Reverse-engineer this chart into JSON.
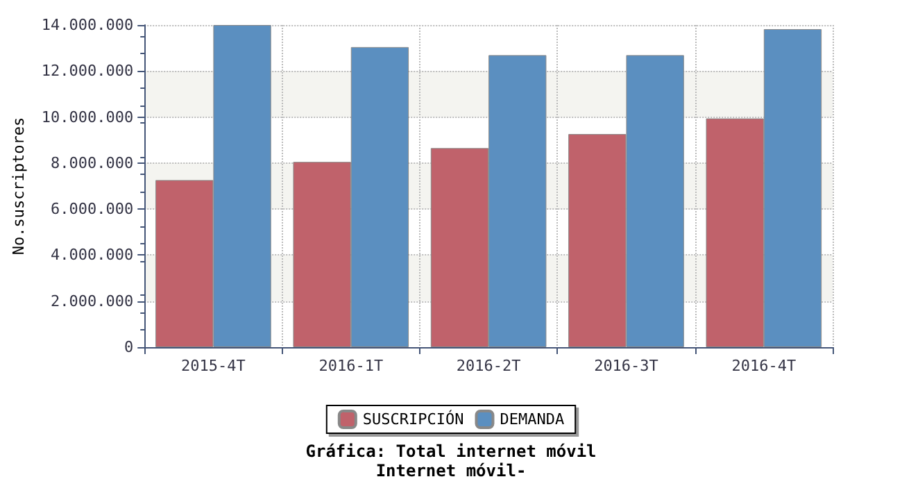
{
  "chart_data": {
    "type": "bar",
    "title": "Gráfica: Total internet móvil",
    "subtitle": "Internet móvil-",
    "ylabel": "No.suscriptores",
    "categories": [
      "2015-4T",
      "2016-1T",
      "2016-2T",
      "2016-3T",
      "2016-4T"
    ],
    "series": [
      {
        "name": "SUSCRIPCIÓN",
        "color": "#c0626b",
        "values": [
          7260000,
          8050000,
          8650000,
          9260000,
          9940000
        ]
      },
      {
        "name": "DEMANDA",
        "color": "#5b8fc0",
        "values": [
          14000000,
          13040000,
          12690000,
          12690000,
          13820000
        ]
      }
    ],
    "ylim": [
      0,
      14000000
    ],
    "yticks": [
      {
        "value": 0,
        "label": "0"
      },
      {
        "value": 2000000,
        "label": "2.000.000"
      },
      {
        "value": 4000000,
        "label": "4.000.000"
      },
      {
        "value": 6000000,
        "label": "6.000.000"
      },
      {
        "value": 8000000,
        "label": "8.000.000"
      },
      {
        "value": 10000000,
        "label": "10.000.000"
      },
      {
        "value": 12000000,
        "label": "12.000.000"
      },
      {
        "value": 14000000,
        "label": "14.000.000"
      }
    ],
    "grid": true,
    "legend": "bottom"
  }
}
